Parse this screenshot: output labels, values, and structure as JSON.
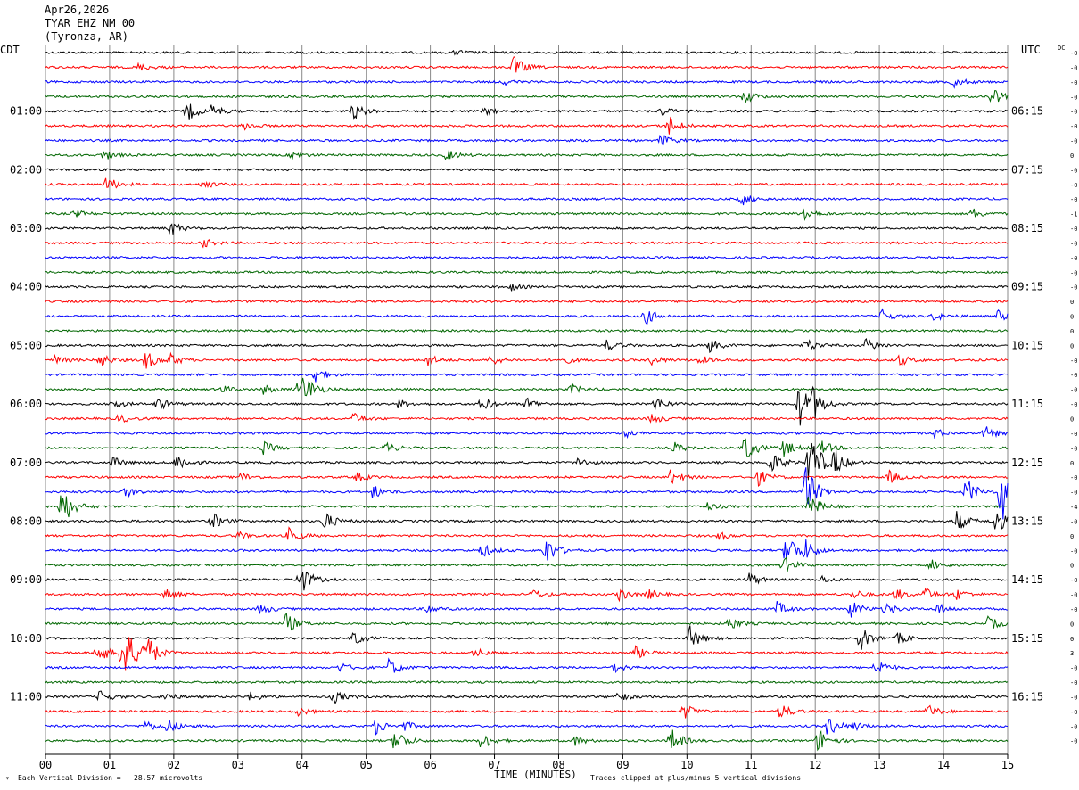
{
  "header": {
    "date": "Apr26,2026",
    "station": "TYAR EHZ NM 00",
    "location": "(Tyronza, AR)"
  },
  "left_tz": "CDT",
  "right_tz": "UTC",
  "dc_label": "DC",
  "footer": {
    "scale_note": "Each Vertical Division =   28.57 microvolts",
    "clip_note": "Traces clipped at plus/minus 5 vertical divisions",
    "corner_mark": "▿"
  },
  "chart_data": {
    "type": "line",
    "xlabel": "TIME (MINUTES)",
    "x_ticks": [
      "00",
      "01",
      "02",
      "03",
      "04",
      "05",
      "06",
      "07",
      "08",
      "09",
      "10",
      "11",
      "12",
      "13",
      "14",
      "15"
    ],
    "xlim": [
      0,
      15
    ],
    "grid": true,
    "row_count": 48,
    "row_colors": [
      "#000000",
      "#ff0000",
      "#0000ff",
      "#006600"
    ],
    "left_hour_labels": [
      {
        "row": 4,
        "label": "01:00"
      },
      {
        "row": 8,
        "label": "02:00"
      },
      {
        "row": 12,
        "label": "03:00"
      },
      {
        "row": 16,
        "label": "04:00"
      },
      {
        "row": 20,
        "label": "05:00"
      },
      {
        "row": 24,
        "label": "06:00"
      },
      {
        "row": 28,
        "label": "07:00"
      },
      {
        "row": 32,
        "label": "08:00"
      },
      {
        "row": 36,
        "label": "09:00"
      },
      {
        "row": 40,
        "label": "10:00"
      },
      {
        "row": 44,
        "label": "11:00"
      }
    ],
    "right_hour_labels": [
      {
        "row": 4,
        "label": "06:15"
      },
      {
        "row": 8,
        "label": "07:15"
      },
      {
        "row": 12,
        "label": "08:15"
      },
      {
        "row": 16,
        "label": "09:15"
      },
      {
        "row": 20,
        "label": "10:15"
      },
      {
        "row": 24,
        "label": "11:15"
      },
      {
        "row": 28,
        "label": "12:15"
      },
      {
        "row": 32,
        "label": "13:15"
      },
      {
        "row": 36,
        "label": "14:15"
      },
      {
        "row": 40,
        "label": "15:15"
      },
      {
        "row": 44,
        "label": "16:15"
      }
    ],
    "dc_offsets": [
      "-0",
      "-0",
      "-0",
      "-0",
      "-0",
      "-0",
      "-0",
      "0",
      "-0",
      "-0",
      "-0",
      "-1",
      "-0",
      "-0",
      "-0",
      "-0",
      "-0",
      "0",
      "0",
      "0",
      "0",
      "-0",
      "-0",
      "-0",
      "-0",
      "0",
      "-0",
      "-0",
      "0",
      "-0",
      "-0",
      "-4",
      "-0",
      "0",
      "-0",
      "0",
      "-0",
      "-0",
      "-0",
      "0",
      "0",
      "3",
      "-0",
      "-0",
      "-0",
      "-0",
      "-0",
      "-0"
    ],
    "events": [
      {
        "row": 0,
        "t": 6.4,
        "a": 3
      },
      {
        "row": 1,
        "t": 1.45,
        "a": 4
      },
      {
        "row": 1,
        "t": 7.3,
        "a": 12
      },
      {
        "row": 2,
        "t": 7.15,
        "a": 3
      },
      {
        "row": 2,
        "t": 14.15,
        "a": 6
      },
      {
        "row": 3,
        "t": 10.9,
        "a": 8
      },
      {
        "row": 3,
        "t": 14.75,
        "a": 12
      },
      {
        "row": 4,
        "t": 2.2,
        "a": 12
      },
      {
        "row": 4,
        "t": 2.6,
        "a": 7
      },
      {
        "row": 4,
        "t": 4.8,
        "a": 9
      },
      {
        "row": 4,
        "t": 6.85,
        "a": 4
      },
      {
        "row": 4,
        "t": 9.6,
        "a": 5
      },
      {
        "row": 5,
        "t": 3.1,
        "a": 4
      },
      {
        "row": 5,
        "t": 9.7,
        "a": 12
      },
      {
        "row": 6,
        "t": 9.6,
        "a": 7
      },
      {
        "row": 7,
        "t": 0.9,
        "a": 6
      },
      {
        "row": 7,
        "t": 3.85,
        "a": 4
      },
      {
        "row": 7,
        "t": 6.25,
        "a": 6
      },
      {
        "row": 9,
        "t": 0.95,
        "a": 9
      },
      {
        "row": 9,
        "t": 2.45,
        "a": 5
      },
      {
        "row": 10,
        "t": 10.85,
        "a": 7
      },
      {
        "row": 11,
        "t": 0.45,
        "a": 4
      },
      {
        "row": 11,
        "t": 11.8,
        "a": 10
      },
      {
        "row": 11,
        "t": 14.45,
        "a": 6
      },
      {
        "row": 12,
        "t": 1.95,
        "a": 8
      },
      {
        "row": 13,
        "t": 2.45,
        "a": 5
      },
      {
        "row": 16,
        "t": 7.25,
        "a": 4
      },
      {
        "row": 18,
        "t": 9.35,
        "a": 10
      },
      {
        "row": 18,
        "t": 13.05,
        "a": 8
      },
      {
        "row": 18,
        "t": 13.85,
        "a": 5
      },
      {
        "row": 18,
        "t": 14.85,
        "a": 6
      },
      {
        "row": 20,
        "t": 8.75,
        "a": 6
      },
      {
        "row": 20,
        "t": 10.35,
        "a": 8
      },
      {
        "row": 20,
        "t": 11.85,
        "a": 8
      },
      {
        "row": 20,
        "t": 12.8,
        "a": 8
      },
      {
        "row": 21,
        "t": 0.15,
        "a": 5
      },
      {
        "row": 21,
        "t": 0.85,
        "a": 8
      },
      {
        "row": 21,
        "t": 1.55,
        "a": 12
      },
      {
        "row": 21,
        "t": 1.95,
        "a": 6
      },
      {
        "row": 21,
        "t": 5.95,
        "a": 7
      },
      {
        "row": 21,
        "t": 6.95,
        "a": 6
      },
      {
        "row": 21,
        "t": 8.05,
        "a": 5
      },
      {
        "row": 21,
        "t": 9.45,
        "a": 5
      },
      {
        "row": 21,
        "t": 10.2,
        "a": 5
      },
      {
        "row": 21,
        "t": 13.3,
        "a": 7
      },
      {
        "row": 22,
        "t": 4.2,
        "a": 9
      },
      {
        "row": 23,
        "t": 3.95,
        "a": 14
      },
      {
        "row": 23,
        "t": 4.05,
        "a": 10
      },
      {
        "row": 23,
        "t": 3.4,
        "a": 5
      },
      {
        "row": 23,
        "t": 2.75,
        "a": 4
      },
      {
        "row": 23,
        "t": 8.2,
        "a": 5
      },
      {
        "row": 24,
        "t": 1.05,
        "a": 5
      },
      {
        "row": 24,
        "t": 1.75,
        "a": 7
      },
      {
        "row": 24,
        "t": 5.5,
        "a": 5
      },
      {
        "row": 24,
        "t": 6.8,
        "a": 8
      },
      {
        "row": 24,
        "t": 7.5,
        "a": 7
      },
      {
        "row": 24,
        "t": 9.5,
        "a": 8
      },
      {
        "row": 24,
        "t": 11.75,
        "a": 26
      },
      {
        "row": 24,
        "t": 11.95,
        "a": 16
      },
      {
        "row": 25,
        "t": 1.15,
        "a": 5
      },
      {
        "row": 25,
        "t": 4.8,
        "a": 6
      },
      {
        "row": 25,
        "t": 9.45,
        "a": 6
      },
      {
        "row": 26,
        "t": 9.05,
        "a": 4
      },
      {
        "row": 26,
        "t": 13.85,
        "a": 6
      },
      {
        "row": 26,
        "t": 14.65,
        "a": 8
      },
      {
        "row": 27,
        "t": 3.4,
        "a": 7
      },
      {
        "row": 27,
        "t": 5.3,
        "a": 6
      },
      {
        "row": 27,
        "t": 9.8,
        "a": 6
      },
      {
        "row": 27,
        "t": 10.9,
        "a": 16
      },
      {
        "row": 27,
        "t": 11.5,
        "a": 10
      },
      {
        "row": 27,
        "t": 12.1,
        "a": 8
      },
      {
        "row": 28,
        "t": 1.05,
        "a": 6
      },
      {
        "row": 28,
        "t": 2.05,
        "a": 11
      },
      {
        "row": 28,
        "t": 8.3,
        "a": 5
      },
      {
        "row": 28,
        "t": 11.9,
        "a": 40
      },
      {
        "row": 28,
        "t": 12.3,
        "a": 14
      },
      {
        "row": 28,
        "t": 11.3,
        "a": 14
      },
      {
        "row": 29,
        "t": 3.05,
        "a": 5
      },
      {
        "row": 29,
        "t": 4.85,
        "a": 5
      },
      {
        "row": 29,
        "t": 9.75,
        "a": 9
      },
      {
        "row": 29,
        "t": 11.1,
        "a": 10
      },
      {
        "row": 29,
        "t": 13.15,
        "a": 7
      },
      {
        "row": 30,
        "t": 1.25,
        "a": 6
      },
      {
        "row": 30,
        "t": 5.1,
        "a": 8
      },
      {
        "row": 30,
        "t": 11.85,
        "a": 30
      },
      {
        "row": 30,
        "t": 14.35,
        "a": 16
      },
      {
        "row": 30,
        "t": 14.9,
        "a": 38
      },
      {
        "row": 31,
        "t": 0.25,
        "a": 24
      },
      {
        "row": 31,
        "t": 10.3,
        "a": 5
      },
      {
        "row": 31,
        "t": 11.9,
        "a": 14
      },
      {
        "row": 32,
        "t": 2.6,
        "a": 10
      },
      {
        "row": 32,
        "t": 4.35,
        "a": 11
      },
      {
        "row": 32,
        "t": 14.2,
        "a": 12
      },
      {
        "row": 32,
        "t": 14.8,
        "a": 16
      },
      {
        "row": 33,
        "t": 3.0,
        "a": 4
      },
      {
        "row": 33,
        "t": 3.8,
        "a": 9
      },
      {
        "row": 33,
        "t": 10.5,
        "a": 4
      },
      {
        "row": 34,
        "t": 6.8,
        "a": 8
      },
      {
        "row": 34,
        "t": 7.8,
        "a": 16
      },
      {
        "row": 34,
        "t": 11.55,
        "a": 22
      },
      {
        "row": 34,
        "t": 11.85,
        "a": 10
      },
      {
        "row": 35,
        "t": 11.5,
        "a": 10
      },
      {
        "row": 35,
        "t": 13.8,
        "a": 6
      },
      {
        "row": 36,
        "t": 3.95,
        "a": 20
      },
      {
        "row": 36,
        "t": 10.95,
        "a": 9
      },
      {
        "row": 36,
        "t": 12.1,
        "a": 4
      },
      {
        "row": 37,
        "t": 1.85,
        "a": 8
      },
      {
        "row": 37,
        "t": 7.6,
        "a": 5
      },
      {
        "row": 37,
        "t": 8.95,
        "a": 7
      },
      {
        "row": 37,
        "t": 9.4,
        "a": 5
      },
      {
        "row": 37,
        "t": 12.6,
        "a": 5
      },
      {
        "row": 37,
        "t": 13.25,
        "a": 7
      },
      {
        "row": 37,
        "t": 13.7,
        "a": 7
      },
      {
        "row": 37,
        "t": 14.2,
        "a": 6
      },
      {
        "row": 38,
        "t": 3.35,
        "a": 6
      },
      {
        "row": 38,
        "t": 5.95,
        "a": 5
      },
      {
        "row": 38,
        "t": 11.4,
        "a": 8
      },
      {
        "row": 38,
        "t": 12.55,
        "a": 10
      },
      {
        "row": 38,
        "t": 13.1,
        "a": 7
      },
      {
        "row": 38,
        "t": 13.9,
        "a": 6
      },
      {
        "row": 39,
        "t": 3.75,
        "a": 12
      },
      {
        "row": 39,
        "t": 10.65,
        "a": 8
      },
      {
        "row": 39,
        "t": 14.7,
        "a": 8
      },
      {
        "row": 40,
        "t": 4.8,
        "a": 8
      },
      {
        "row": 40,
        "t": 10.05,
        "a": 14
      },
      {
        "row": 40,
        "t": 12.7,
        "a": 14
      },
      {
        "row": 40,
        "t": 13.3,
        "a": 6
      },
      {
        "row": 41,
        "t": 1.2,
        "a": 40
      },
      {
        "row": 41,
        "t": 1.55,
        "a": 22
      },
      {
        "row": 41,
        "t": 0.8,
        "a": 14
      },
      {
        "row": 41,
        "t": 6.7,
        "a": 5
      },
      {
        "row": 41,
        "t": 9.2,
        "a": 7
      },
      {
        "row": 42,
        "t": 4.6,
        "a": 5
      },
      {
        "row": 42,
        "t": 5.35,
        "a": 10
      },
      {
        "row": 42,
        "t": 8.85,
        "a": 6
      },
      {
        "row": 42,
        "t": 12.95,
        "a": 10
      },
      {
        "row": 44,
        "t": 0.85,
        "a": 7
      },
      {
        "row": 44,
        "t": 1.85,
        "a": 5
      },
      {
        "row": 44,
        "t": 3.2,
        "a": 5
      },
      {
        "row": 44,
        "t": 4.5,
        "a": 7
      },
      {
        "row": 44,
        "t": 8.9,
        "a": 6
      },
      {
        "row": 45,
        "t": 3.95,
        "a": 5
      },
      {
        "row": 45,
        "t": 9.95,
        "a": 9
      },
      {
        "row": 45,
        "t": 11.45,
        "a": 9
      },
      {
        "row": 45,
        "t": 13.75,
        "a": 8
      },
      {
        "row": 46,
        "t": 1.55,
        "a": 7
      },
      {
        "row": 46,
        "t": 1.9,
        "a": 8
      },
      {
        "row": 46,
        "t": 5.15,
        "a": 9
      },
      {
        "row": 46,
        "t": 5.6,
        "a": 5
      },
      {
        "row": 46,
        "t": 12.2,
        "a": 12
      },
      {
        "row": 46,
        "t": 12.6,
        "a": 5
      },
      {
        "row": 47,
        "t": 5.45,
        "a": 14
      },
      {
        "row": 47,
        "t": 6.8,
        "a": 10
      },
      {
        "row": 47,
        "t": 8.25,
        "a": 5
      },
      {
        "row": 47,
        "t": 9.75,
        "a": 14
      },
      {
        "row": 47,
        "t": 12.05,
        "a": 14
      }
    ]
  }
}
